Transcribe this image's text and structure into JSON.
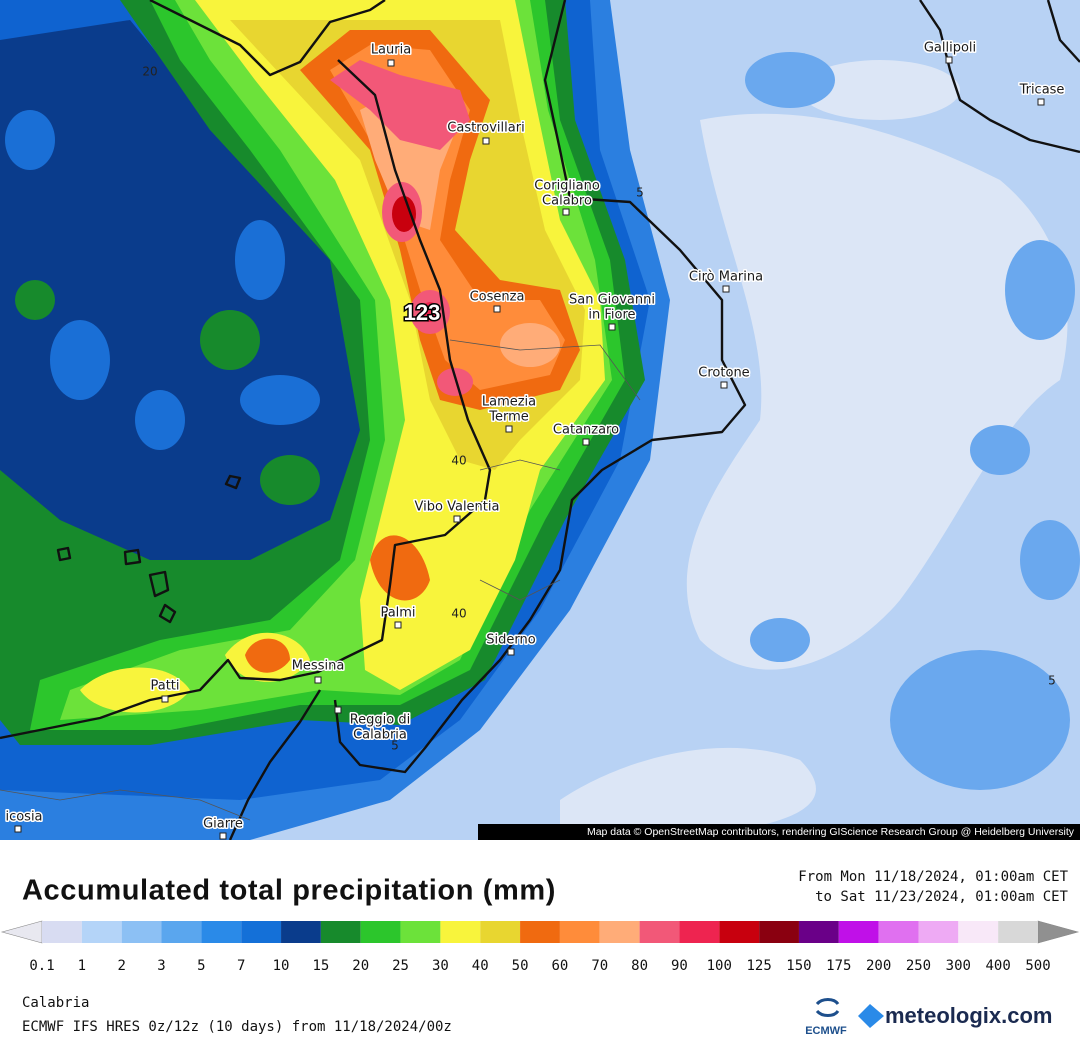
{
  "map": {
    "cities": [
      {
        "lines": [
          "Lauria"
        ]
      },
      {
        "lines": [
          "Gallipoli"
        ]
      },
      {
        "lines": [
          "Tricase"
        ]
      },
      {
        "lines": [
          "Castrovillari"
        ]
      },
      {
        "lines": [
          "Corigliano",
          "Calabro"
        ]
      },
      {
        "lines": [
          "Cirò Marina"
        ]
      },
      {
        "lines": [
          "Cosenza"
        ]
      },
      {
        "lines": [
          "San Giovanni",
          "in Fiore"
        ]
      },
      {
        "lines": [
          "Crotone"
        ]
      },
      {
        "lines": [
          "Lamezia",
          "Terme"
        ]
      },
      {
        "lines": [
          "Catanzaro"
        ]
      },
      {
        "lines": [
          "Vibo Valentia"
        ]
      },
      {
        "lines": [
          "Palmi"
        ]
      },
      {
        "lines": [
          "Siderno"
        ]
      },
      {
        "lines": [
          "Messina"
        ]
      },
      {
        "lines": [
          "Patti"
        ]
      },
      {
        "lines": [
          "Reggio di",
          "Calabria"
        ]
      },
      {
        "lines": [
          "icosia"
        ]
      },
      {
        "lines": [
          "Giarre"
        ]
      }
    ],
    "contour_labels": [
      20,
      5,
      40,
      40,
      5,
      5
    ],
    "max_label": 123,
    "attribution": "Map data © OpenStreetMap contributors, rendering GIScience Research Group @ Heidelberg University"
  },
  "legend": {
    "title": "Accumulated total precipitation (mm)",
    "period": [
      "From Mon 11/18/2024, 01:00am CET",
      "to Sat 11/23/2024, 01:00am CET"
    ],
    "ticks": [
      0.1,
      1,
      2,
      3,
      5,
      7,
      10,
      15,
      20,
      25,
      30,
      40,
      50,
      60,
      70,
      80,
      90,
      100,
      125,
      150,
      175,
      200,
      250,
      300,
      400,
      500
    ],
    "colors": [
      "#d8dcf2",
      "#b4d4f8",
      "#8cc0f4",
      "#5aa6ee",
      "#2a8ae8",
      "#1470d8",
      "#0a3c8c",
      "#178a2c",
      "#2cc62c",
      "#6ce23a",
      "#f8f43c",
      "#e8d630",
      "#f06a10",
      "#ff8c3a",
      "#ffac78",
      "#f25878",
      "#ee2450",
      "#c8000e",
      "#8a0010",
      "#6a0088",
      "#c010e8",
      "#e070f0",
      "#eeaaf4",
      "#f8e8f8",
      "#d8d8d8"
    ],
    "under_color": "#e8e8f0",
    "over_color": "#909090"
  },
  "footer": {
    "region": "Calabria",
    "model": "ECMWF IFS HRES 0z/12z (10 days) from  11/18/2024/00z",
    "logos": [
      "ECMWF",
      "meteologix.com"
    ]
  }
}
